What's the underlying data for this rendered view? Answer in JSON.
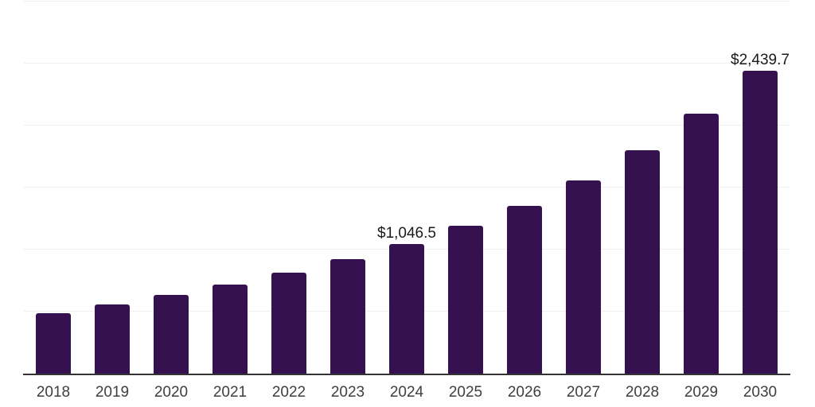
{
  "chart_data": {
    "type": "bar",
    "title": "",
    "xlabel": "",
    "ylabel": "",
    "categories": [
      "2018",
      "2019",
      "2020",
      "2021",
      "2022",
      "2023",
      "2024",
      "2025",
      "2026",
      "2027",
      "2028",
      "2029",
      "2030"
    ],
    "values": [
      490,
      560,
      635,
      720,
      815,
      925,
      1046.5,
      1190,
      1355,
      1560,
      1800,
      2095,
      2439.7
    ],
    "ylim": [
      0,
      3000
    ],
    "gridline_interval": 500,
    "grid": true,
    "legend_position": "none",
    "annotations": [
      {
        "category": "2024",
        "label": "$1,046.5"
      },
      {
        "category": "2030",
        "label": "$2,439.7"
      }
    ]
  },
  "colors": {
    "background": "#ffffff",
    "bar": "#361150",
    "gridline": "#efefef",
    "axis_line": "#333333",
    "x_label": "#3f3f3f",
    "value_label": "#1a1a1a"
  }
}
